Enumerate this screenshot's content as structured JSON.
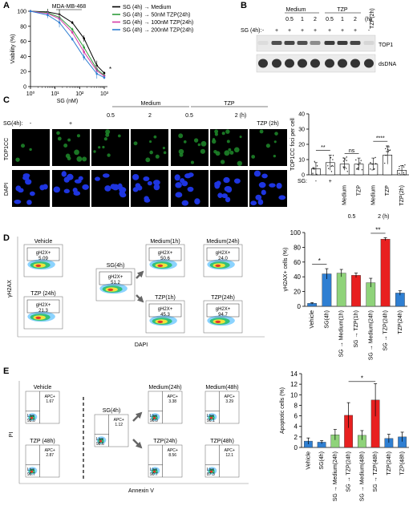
{
  "panels": {
    "A": {
      "letter": "A",
      "chart_data": {
        "type": "line",
        "title": "MDA-MB-468",
        "xlabel": "SG (nM)",
        "ylabel": "Viability (%)",
        "xscale": "log",
        "xlim": [
          1,
          1000
        ],
        "ylim": [
          0,
          100
        ],
        "xticks": [
          1,
          10,
          100,
          1000
        ],
        "xtick_labels": [
          "10⁰",
          "10¹",
          "10²",
          "10³"
        ],
        "yticks": [
          0,
          20,
          40,
          60,
          80,
          100
        ],
        "ytick_labels": [
          "0",
          "20",
          "40",
          "60",
          "80",
          "100"
        ],
        "legend_position": "right",
        "significance": "*",
        "series": [
          {
            "name": "SG (4h) → Medium",
            "color": "#000000",
            "x": [
              1,
              5,
              15,
              50,
              150,
              500,
              1000
            ],
            "y": [
              100,
              99,
              96,
              85,
              64,
              28,
              18
            ]
          },
          {
            "name": "SG (4h) → 50nM TZP(24h)",
            "color": "#2e9c3a",
            "x": [
              1,
              5,
              15,
              50,
              150,
              500,
              1000
            ],
            "y": [
              100,
              98,
              92,
              76,
              52,
              23,
              15
            ]
          },
          {
            "name": "SG (4h) → 100nM TZP(24h)",
            "color": "#d63aa6",
            "x": [
              1,
              5,
              15,
              50,
              150,
              500,
              1000
            ],
            "y": [
              100,
              97,
              90,
              72,
              46,
              21,
              14
            ]
          },
          {
            "name": "SG (4h) → 200nM TZP(24h)",
            "color": "#2f7fd2",
            "x": [
              1,
              5,
              15,
              50,
              150,
              500,
              1000
            ],
            "y": [
              100,
              95,
              85,
              63,
              39,
              17,
              12
            ]
          }
        ]
      }
    },
    "B": {
      "letter": "B",
      "group_medium": "Medium",
      "group_tzp": "TZP",
      "time_labels": [
        "0.5",
        "1",
        "2",
        "0.5",
        "1",
        "2"
      ],
      "time_unit": "(h)",
      "tzp_only": "TZP(2h)",
      "sg_row_label": "SG (4h):",
      "sg_signs": [
        "-",
        "+",
        "+",
        "+",
        "+",
        "+",
        "+",
        "+",
        "-"
      ],
      "band_top1": "TOP1",
      "band_dsdna": "dsDNA",
      "top1_intensity": [
        0.05,
        0.75,
        0.8,
        0.75,
        0.45,
        0.85,
        0.85,
        0.8,
        0.08
      ]
    },
    "C": {
      "letter": "C",
      "sg_label": "SG(4h):",
      "sg_signs": [
        "-",
        "+"
      ],
      "group_medium": "Medium",
      "group_tzp": "TZP",
      "times": [
        "0.5",
        "2",
        "0.5",
        "2 (h)"
      ],
      "tzp_only": "TZP (2h)",
      "row_top1cc": "TOP1CC",
      "row_dapi": "DAPI",
      "chart_data": {
        "type": "bar",
        "ylabel": "TOP1CC foci per cell",
        "ylim": [
          0,
          40
        ],
        "yticks": [
          0,
          10,
          20,
          30,
          40
        ],
        "ytick_labels": [
          "0",
          "10",
          "20",
          "30",
          "40"
        ],
        "sg_label": "SG:",
        "sg_signs": [
          "-",
          "+"
        ],
        "categories": [
          "-",
          "+",
          "Medium",
          "TZP",
          "Medium",
          "TZP",
          "TZP(2h)"
        ],
        "values": [
          4,
          8,
          7,
          7,
          7,
          13,
          3
        ],
        "errors": [
          4,
          5,
          4,
          4,
          4,
          6,
          3
        ],
        "bottom_labels": [
          "0.5",
          "2 (h)"
        ],
        "significance": [
          {
            "from": 0,
            "to": 1,
            "label": "**"
          },
          {
            "from": 2,
            "to": 3,
            "label": "ns"
          },
          {
            "from": 4,
            "to": 5,
            "label": "****"
          }
        ]
      }
    },
    "D": {
      "letter": "D",
      "ylabel": "γH2AX",
      "xlabel": "DAPI",
      "plots": [
        {
          "title": "Vehicle",
          "gate": "gH2X+",
          "value": "5.09"
        },
        {
          "title": "TZP (24h)",
          "gate": "gH2X+",
          "value": "21.3"
        },
        {
          "title": "SG(4h)",
          "gate": "gH2X+",
          "value": "51.2"
        },
        {
          "title": "Medium(1h)",
          "gate": "gH2X+",
          "value": "50.6"
        },
        {
          "title": "Medium(24h)",
          "gate": "gH2X+",
          "value": "24.0"
        },
        {
          "title": "TZP(1h)",
          "gate": "gH2X+",
          "value": "45.3"
        },
        {
          "title": "TZP(24h)",
          "gate": "gH2X+",
          "value": "94.7"
        }
      ],
      "chart_data": {
        "type": "bar",
        "ylabel": "γH2AX+ cells (%)",
        "ylim": [
          0,
          100
        ],
        "yticks": [
          0,
          20,
          40,
          60,
          80,
          100
        ],
        "ytick_labels": [
          "0",
          "20",
          "40",
          "60",
          "80",
          "100"
        ],
        "categories": [
          "Vehicle",
          "SG(4h)",
          "SG → Medium(1h)",
          "SG → TZP(1h)",
          "SG → Medium(24h)",
          "SG → TZP(24h)",
          "TZP(24h)"
        ],
        "values": [
          4,
          44,
          45,
          42,
          32,
          91,
          18
        ],
        "errors": [
          1,
          7,
          5,
          3,
          6,
          2,
          3
        ],
        "colors": [
          "#2f7fd2",
          "#2f7fd2",
          "#8fd37a",
          "#e82020",
          "#8fd37a",
          "#e82020",
          "#2f7fd2"
        ],
        "significance": [
          {
            "from": 0,
            "to": 1,
            "label": "*"
          },
          {
            "from": 4,
            "to": 5,
            "label": "**"
          }
        ]
      }
    },
    "E": {
      "letter": "E",
      "ylabel": "PI",
      "xlabel": "Annexin V",
      "plots": [
        {
          "title": "Vehicle",
          "q1": "APC+",
          "v1": "1.67",
          "q2": "Live",
          "v2": "98.0"
        },
        {
          "title": "TZP (48h)",
          "q1": "APC+",
          "v1": "2.87",
          "q2": "Live",
          "v2": "96.7"
        },
        {
          "title": "SG(4h)",
          "q1": "APC+",
          "v1": "1.12",
          "q2": "Live",
          "v2": "98.6"
        },
        {
          "title": "Medium(24h)",
          "q1": "APC+",
          "v1": "3.38",
          "q2": "Live",
          "v2": "96.0"
        },
        {
          "title": "Medium(48h)",
          "q1": "APC+",
          "v1": "3.29",
          "q2": "Live",
          "v2": "96.1"
        },
        {
          "title": "TZP(24h)",
          "q1": "APC+",
          "v1": "8.56",
          "q2": "Live",
          "v2": "90.7"
        },
        {
          "title": "TZP(48h)",
          "q1": "APC+",
          "v1": "12.1",
          "q2": "Live",
          "v2": "87.3"
        }
      ],
      "chart_data": {
        "type": "bar",
        "ylabel": "Apoptotic cells (%)",
        "ylim": [
          0,
          14
        ],
        "yticks": [
          0,
          2,
          4,
          6,
          8,
          10,
          12,
          14
        ],
        "ytick_labels": [
          "0",
          "2",
          "4",
          "6",
          "8",
          "10",
          "12",
          "14"
        ],
        "categories": [
          "Vehicle",
          "SG(4h)",
          "SG → Medium(24h)",
          "SG → TZP(24h)",
          "SG → Medium(48h)",
          "SG → TZP(48h)",
          "TZP(24h)",
          "TZP(48h)"
        ],
        "values": [
          1.2,
          1.0,
          2.4,
          6.1,
          2.3,
          9.0,
          1.7,
          2.0
        ],
        "errors": [
          0.6,
          0.3,
          1.0,
          2.4,
          0.9,
          3.1,
          0.8,
          0.9
        ],
        "colors": [
          "#2f7fd2",
          "#2f7fd2",
          "#8fd37a",
          "#e82020",
          "#8fd37a",
          "#e82020",
          "#2f7fd2",
          "#2f7fd2"
        ],
        "significance": [
          {
            "from": 3,
            "to": 5,
            "label": "*"
          }
        ]
      }
    }
  }
}
